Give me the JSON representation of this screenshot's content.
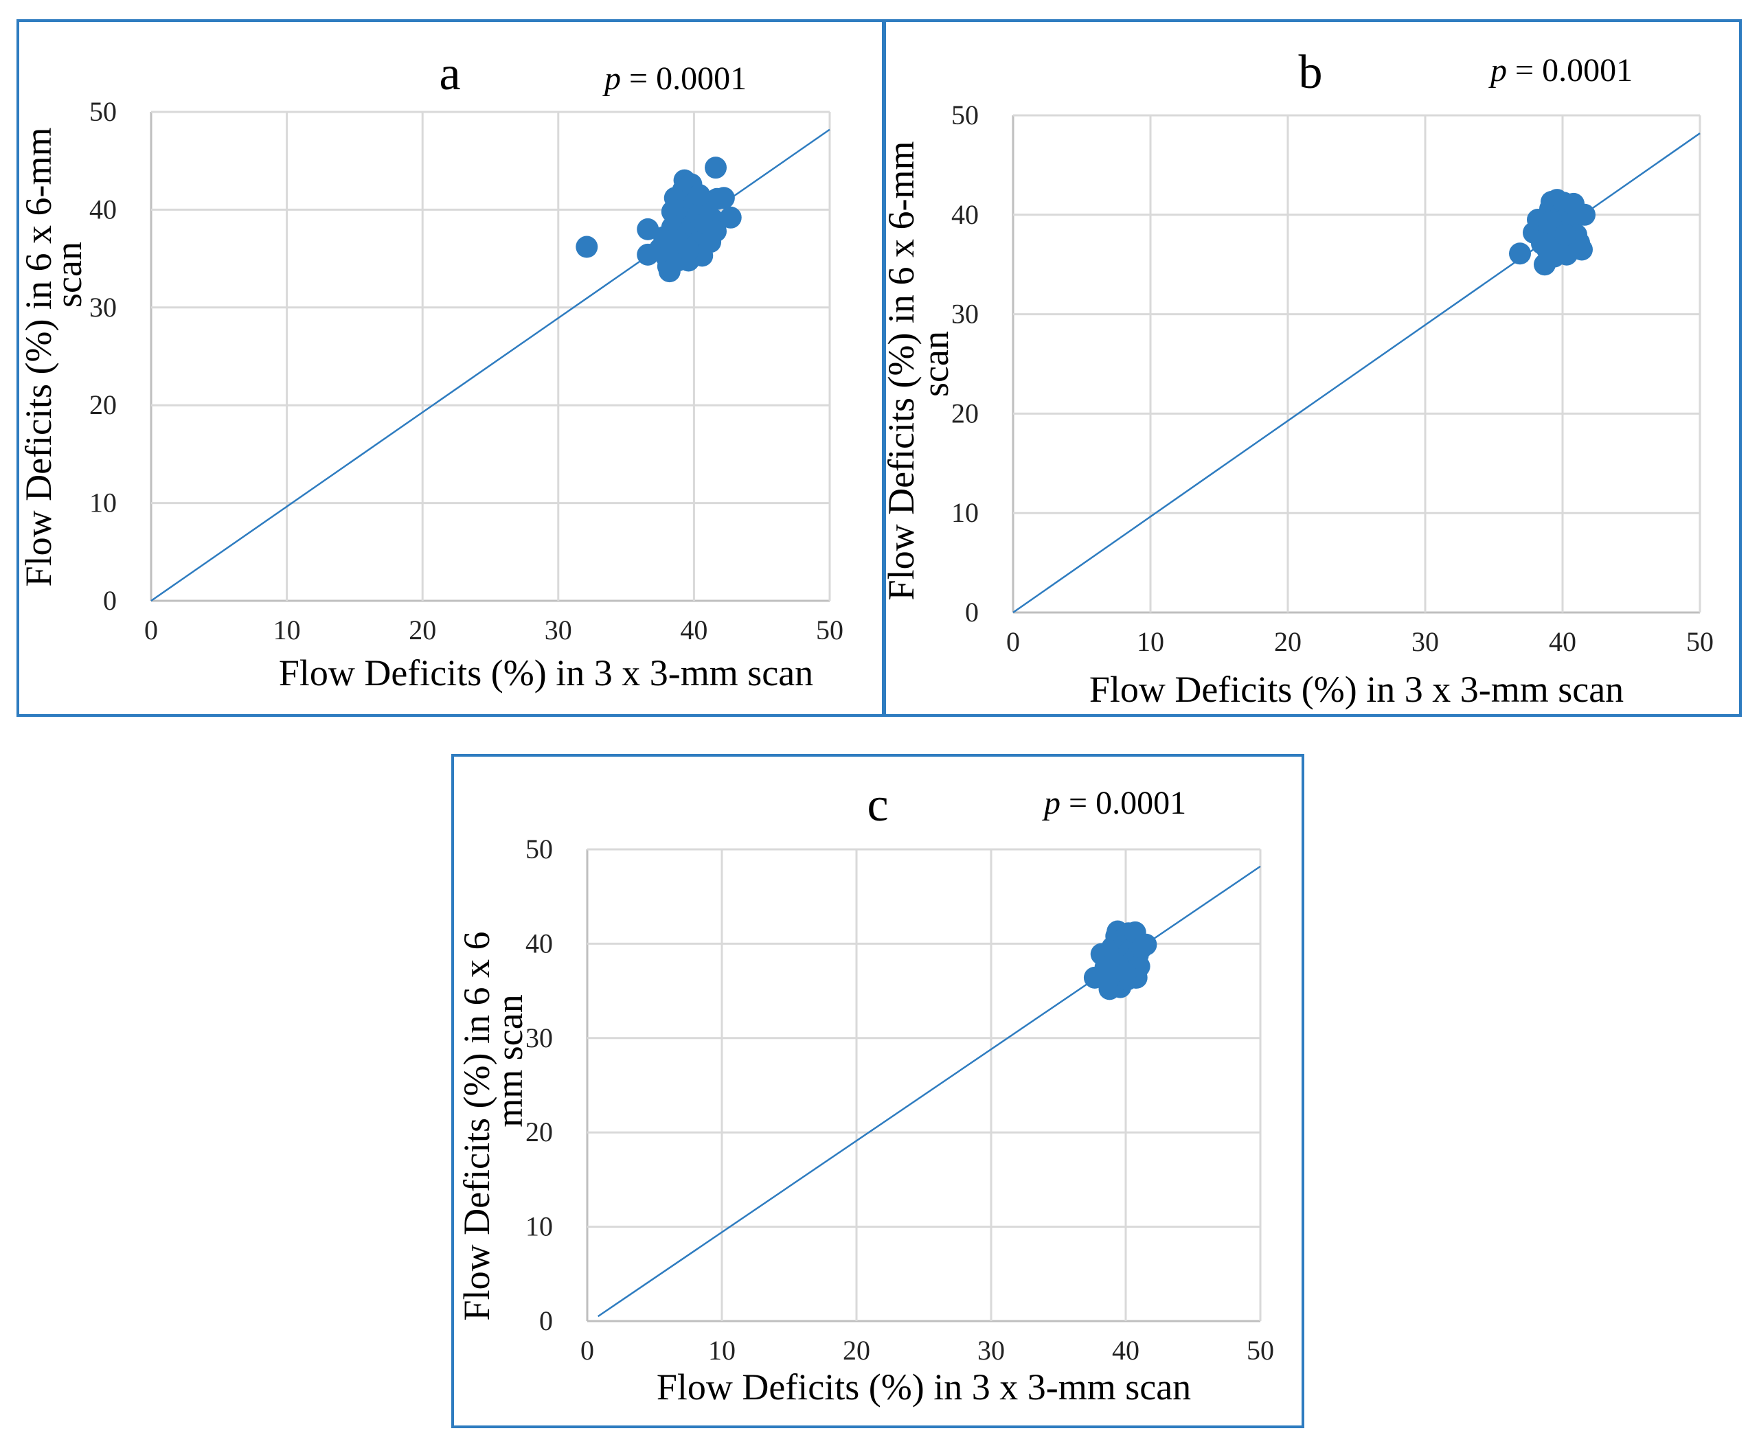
{
  "chart_data": [
    {
      "type": "scatter",
      "panel_label": "a",
      "p_italic": "p",
      "p_value": " = 0.0001",
      "xlabel": "Flow Deficits (%) in 3 x 3-mm scan",
      "ylabel_lines": [
        "Flow Deficits (%) in 6 x 6-mm",
        "scan"
      ],
      "xlim": [
        0,
        50
      ],
      "ylim": [
        0,
        50
      ],
      "ticks": [
        0,
        10,
        20,
        30,
        40,
        50
      ],
      "tick_labels": [
        "0",
        "10",
        "20",
        "30",
        "40",
        "50"
      ],
      "grid": true,
      "trendline": {
        "x": [
          0,
          50
        ],
        "y": [
          0,
          48.2
        ]
      },
      "points": [
        [
          32.1,
          36.2
        ],
        [
          36.6,
          38.0
        ],
        [
          36.6,
          35.4
        ],
        [
          37.5,
          36.0
        ],
        [
          37.8,
          37.2
        ],
        [
          38.0,
          35.1
        ],
        [
          38.1,
          34.2
        ],
        [
          38.2,
          33.7
        ],
        [
          38.3,
          36.5
        ],
        [
          38.4,
          38.2
        ],
        [
          38.4,
          39.8
        ],
        [
          38.6,
          41.2
        ],
        [
          38.7,
          37.4
        ],
        [
          38.9,
          38.7
        ],
        [
          39.0,
          40.5
        ],
        [
          39.1,
          35.9
        ],
        [
          39.2,
          42.0
        ],
        [
          39.3,
          43.0
        ],
        [
          39.4,
          36.8
        ],
        [
          39.5,
          39.2
        ],
        [
          39.6,
          34.8
        ],
        [
          39.7,
          37.9
        ],
        [
          39.8,
          42.6
        ],
        [
          39.9,
          38.4
        ],
        [
          40.0,
          40.6
        ],
        [
          40.1,
          36.3
        ],
        [
          40.3,
          39.5
        ],
        [
          40.5,
          37.0
        ],
        [
          40.6,
          35.3
        ],
        [
          40.8,
          38.6
        ],
        [
          41.0,
          40.3
        ],
        [
          41.2,
          36.7
        ],
        [
          41.4,
          39.0
        ],
        [
          41.6,
          37.8
        ],
        [
          41.7,
          41.1
        ],
        [
          41.6,
          44.3
        ],
        [
          42.2,
          41.2
        ],
        [
          42.7,
          39.2
        ],
        [
          38.8,
          34.8
        ],
        [
          39.6,
          35.9
        ],
        [
          40.4,
          41.5
        ],
        [
          38.5,
          36.9
        ]
      ]
    },
    {
      "type": "scatter",
      "panel_label": "b",
      "p_italic": "p",
      "p_value": " = 0.0001",
      "xlabel": "Flow Deficits (%) in 3 x 3-mm scan",
      "ylabel_lines": [
        "Flow Deficits (%) in 6 x 6-mm",
        "scan"
      ],
      "xlim": [
        0,
        50
      ],
      "ylim": [
        0,
        50
      ],
      "ticks": [
        0,
        10,
        20,
        30,
        40,
        50
      ],
      "tick_labels": [
        "0",
        "10",
        "20",
        "30",
        "40",
        "50"
      ],
      "grid": true,
      "trendline": {
        "x": [
          0,
          50
        ],
        "y": [
          0,
          48.2
        ]
      },
      "points": [
        [
          36.9,
          36.1
        ],
        [
          37.9,
          38.2
        ],
        [
          38.2,
          39.5
        ],
        [
          38.5,
          37.1
        ],
        [
          38.7,
          35.0
        ],
        [
          38.9,
          36.5
        ],
        [
          39.0,
          38.8
        ],
        [
          39.1,
          40.6
        ],
        [
          39.2,
          41.3
        ],
        [
          39.3,
          37.6
        ],
        [
          39.4,
          35.8
        ],
        [
          39.5,
          39.9
        ],
        [
          39.6,
          41.5
        ],
        [
          39.7,
          38.3
        ],
        [
          39.8,
          36.9
        ],
        [
          39.9,
          40.2
        ],
        [
          40.0,
          37.4
        ],
        [
          40.1,
          41.2
        ],
        [
          40.2,
          39.1
        ],
        [
          40.3,
          36.0
        ],
        [
          40.4,
          38.6
        ],
        [
          40.5,
          40.7
        ],
        [
          40.6,
          37.8
        ],
        [
          40.7,
          39.6
        ],
        [
          40.8,
          41.1
        ],
        [
          40.9,
          36.6
        ],
        [
          41.0,
          38.0
        ],
        [
          41.2,
          37.2
        ],
        [
          41.4,
          36.5
        ],
        [
          41.6,
          40.0
        ],
        [
          39.0,
          39.2
        ],
        [
          39.7,
          36.2
        ],
        [
          40.2,
          38.0
        ]
      ]
    },
    {
      "type": "scatter",
      "panel_label": "c",
      "p_italic": "p",
      "p_value": " = 0.0001",
      "xlabel": "Flow Deficits (%) in 3 x 3-mm scan",
      "ylabel_lines": [
        "Flow Deficits (%) in 6 x 6",
        "mm scan"
      ],
      "xlim": [
        0,
        50
      ],
      "ylim": [
        0,
        50
      ],
      "ticks": [
        0,
        10,
        20,
        30,
        40,
        50
      ],
      "tick_labels": [
        "0",
        "10",
        "20",
        "30",
        "40",
        "50"
      ],
      "grid": true,
      "trendline": {
        "x": [
          0.8,
          50
        ],
        "y": [
          0.5,
          48.2
        ]
      },
      "points": [
        [
          37.7,
          36.4
        ],
        [
          38.2,
          38.9
        ],
        [
          38.5,
          37.5
        ],
        [
          38.8,
          35.2
        ],
        [
          39.0,
          39.6
        ],
        [
          39.2,
          36.8
        ],
        [
          39.3,
          40.8
        ],
        [
          39.4,
          41.3
        ],
        [
          39.5,
          38.2
        ],
        [
          39.6,
          35.4
        ],
        [
          39.7,
          39.9
        ],
        [
          39.8,
          37.0
        ],
        [
          39.9,
          40.6
        ],
        [
          40.0,
          38.6
        ],
        [
          40.1,
          36.2
        ],
        [
          40.2,
          41.1
        ],
        [
          40.3,
          39.2
        ],
        [
          40.4,
          37.4
        ],
        [
          40.5,
          38.1
        ],
        [
          40.6,
          40.4
        ],
        [
          40.7,
          41.2
        ],
        [
          40.8,
          36.4
        ],
        [
          40.9,
          38.8
        ],
        [
          41.0,
          37.6
        ],
        [
          41.2,
          39.6
        ],
        [
          41.5,
          39.9
        ],
        [
          39.1,
          38.0
        ],
        [
          40.0,
          36.9
        ]
      ]
    }
  ]
}
